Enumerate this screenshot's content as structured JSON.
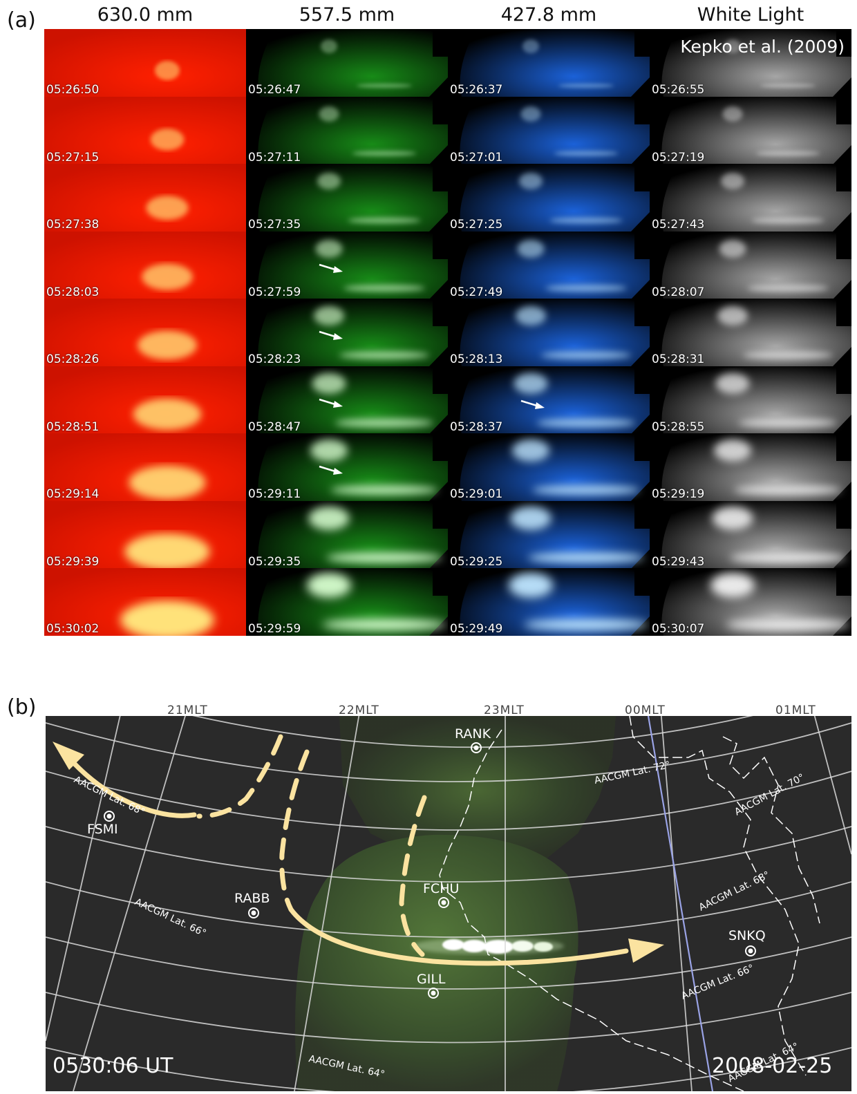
{
  "panel_a": {
    "label": "(a)",
    "columns": [
      "630.0 mm",
      "557.5 mm",
      "427.8 mm",
      "White Light"
    ],
    "citation": "Kepko et al. (2009)",
    "column_colors": [
      "#ff2000",
      "#1a9a1a",
      "#1e6cf0",
      "#b8b8b8"
    ],
    "times": [
      [
        "05:26:50",
        "05:26:47",
        "05:26:37",
        "05:26:55"
      ],
      [
        "05:27:15",
        "05:27:11",
        "05:27:01",
        "05:27:19"
      ],
      [
        "05:27:38",
        "05:27:35",
        "05:27:25",
        "05:27:43"
      ],
      [
        "05:28:03",
        "05:27:59",
        "05:27:49",
        "05:28:07"
      ],
      [
        "05:28:26",
        "05:28:23",
        "05:28:13",
        "05:28:31"
      ],
      [
        "05:28:51",
        "05:28:47",
        "05:28:37",
        "05:28:55"
      ],
      [
        "05:29:14",
        "05:29:11",
        "05:29:01",
        "05:29:19"
      ],
      [
        "05:29:39",
        "05:29:35",
        "05:29:25",
        "05:29:43"
      ],
      [
        "05:30:02",
        "05:29:59",
        "05:29:49",
        "05:30:07"
      ]
    ]
  },
  "panel_b": {
    "label": "(b)",
    "mlt_labels": [
      "21MLT",
      "22MLT",
      "23MLT",
      "00MLT",
      "01MLT"
    ],
    "lat_labels": [
      "AACGM Lat. 72°",
      "AACGM Lat. 70°",
      "AACGM Lat. 68°",
      "AACGM Lat. 68°",
      "AACGM Lat. 66°",
      "AACGM Lat. 66°",
      "AACGM Lat. 64°",
      "AACGM Lat. 64°"
    ],
    "stations": [
      "RANK",
      "FSMI",
      "FCHU",
      "RABB",
      "SNKQ",
      "GILL"
    ],
    "time": "0530:06 UT",
    "date": "2008-02-25",
    "arrow_color": "#fbe3a0",
    "background_color": "#2a2a2a"
  }
}
